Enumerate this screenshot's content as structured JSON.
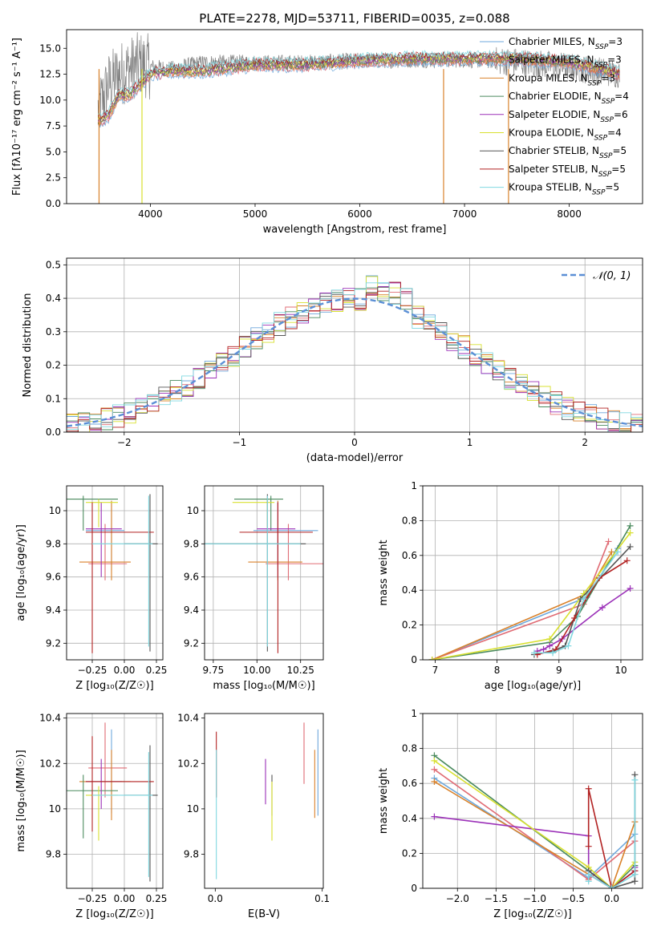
{
  "figure": {
    "title": "PLATE=2278, MJD=53711, FIBERID=0035, z=0.088"
  },
  "chart_data": [
    {
      "id": "spectrum",
      "type": "line",
      "xlabel": "wavelength [Angstrom, rest frame]",
      "ylabel": "Flux [fλ10⁻¹⁷ erg cm⁻² s⁻¹ A⁻¹]",
      "xlim": [
        3200,
        8700
      ],
      "ylim": [
        0,
        16.8
      ],
      "xticks": [
        4000,
        5000,
        6000,
        7000,
        8000
      ],
      "yticks": [
        0.0,
        2.5,
        5.0,
        7.5,
        10.0,
        12.5,
        15.0
      ],
      "grid": false,
      "legend_position": "right",
      "data_envelope": {
        "x": [
          3500,
          3600,
          3700,
          3800,
          3900,
          4000,
          4200,
          4500,
          5000,
          5500,
          6000,
          6500,
          7000,
          7500,
          8000,
          8500
        ],
        "observed_y": [
          9.0,
          11.5,
          12.5,
          13.0,
          13.5,
          13.2,
          13.0,
          13.6,
          13.6,
          13.6,
          13.8,
          13.9,
          13.9,
          13.7,
          13.2,
          12.5
        ],
        "model_y": [
          8.0,
          8.5,
          10.5,
          10.5,
          11.5,
          12.5,
          12.8,
          12.8,
          13.4,
          13.4,
          13.8,
          14.0,
          14.0,
          14.0,
          13.7,
          12.5
        ]
      },
      "series": [
        {
          "name": "Chabrier MILES, N_SSP=3",
          "label_main": "Chabrier MILES, N",
          "label_sub": "SSP",
          "label_tail": "=3",
          "color": "#6fa8dc"
        },
        {
          "name": "Salpeter MILES, N_SSP=3",
          "label_main": "Salpeter MILES, N",
          "label_sub": "SSP",
          "label_tail": "=3",
          "color": "#e06c75"
        },
        {
          "name": "Kroupa MILES, N_SSP=3",
          "label_main": "Kroupa MILES, N",
          "label_sub": "SSP",
          "label_tail": "=3",
          "color": "#d9822b"
        },
        {
          "name": "Chabrier ELODIE, N_SSP=4",
          "label_main": "Chabrier ELODIE, N",
          "label_sub": "SSP",
          "label_tail": "=4",
          "color": "#4a8a5e"
        },
        {
          "name": "Salpeter ELODIE, N_SSP=6",
          "label_main": "Salpeter ELODIE, N",
          "label_sub": "SSP",
          "label_tail": "=6",
          "color": "#9b30b8"
        },
        {
          "name": "Kroupa ELODIE, N_SSP=4",
          "label_main": "Kroupa ELODIE, N",
          "label_sub": "SSP",
          "label_tail": "=4",
          "color": "#d8e030"
        },
        {
          "name": "Chabrier STELIB, N_SSP=5",
          "label_main": "Chabrier STELIB, N",
          "label_sub": "SSP",
          "label_tail": "=5",
          "color": "#555555"
        },
        {
          "name": "Salpeter STELIB, N_SSP=5",
          "label_main": "Salpeter STELIB, N",
          "label_sub": "SSP",
          "label_tail": "=5",
          "color": "#b22222"
        },
        {
          "name": "Kroupa STELIB, N_SSP=5",
          "label_main": "Kroupa STELIB, N",
          "label_sub": "SSP",
          "label_tail": "=5",
          "color": "#7fd8e0"
        }
      ]
    },
    {
      "id": "residuals",
      "type": "line",
      "xlabel": "(data-model)/error",
      "ylabel": "Normed distribution",
      "xlim": [
        -2.5,
        2.5
      ],
      "ylim": [
        0,
        0.52
      ],
      "xticks": [
        -2,
        -1,
        0,
        1,
        2
      ],
      "yticks": [
        0.0,
        0.1,
        0.2,
        0.3,
        0.4,
        0.5
      ],
      "grid": true,
      "legend_position": "top-right",
      "legend_label": "𝒩(0, 1)",
      "reference_curve": {
        "name": "N(0,1)",
        "color": "#5b8fd6",
        "mu": 0,
        "sigma": 1
      },
      "histogram_bin_width": 0.1
    },
    {
      "id": "age-vs-Z",
      "type": "scatter",
      "xlabel": "Z [log₁₀(Z/Z☉)]",
      "ylabel": "age  [log₁₀(age/yr)]",
      "xlim": [
        -0.45,
        0.3
      ],
      "ylim": [
        9.1,
        10.15
      ],
      "xticks": [
        -0.25,
        0.0,
        0.25
      ],
      "xticklabels": [
        "−0.25",
        "0.00",
        "0.25"
      ],
      "yticks": [
        9.2,
        9.4,
        9.6,
        9.8,
        10.0
      ],
      "grid": true
    },
    {
      "id": "age-vs-mass",
      "type": "scatter",
      "xlabel": "mass [log₁₀(M/M☉)]",
      "xlim": [
        9.7,
        10.38
      ],
      "ylim": [
        9.1,
        10.15
      ],
      "xticks": [
        9.75,
        10.0,
        10.25
      ],
      "xticklabels": [
        "9.75",
        "10.00",
        "10.25"
      ],
      "yticks": [
        9.2,
        9.4,
        9.6,
        9.8,
        10.0
      ],
      "grid": true
    },
    {
      "id": "mass-weight-vs-age",
      "type": "line",
      "xlabel": "age  [log₁₀(age/yr)]",
      "ylabel": "mass weight",
      "xlim": [
        6.8,
        10.35
      ],
      "ylim": [
        0,
        1.0
      ],
      "xticks": [
        7,
        8,
        9,
        10
      ],
      "yticks": [
        0.0,
        0.2,
        0.4,
        0.6,
        0.8,
        1.0
      ],
      "grid": true,
      "series": [
        {
          "name": "Chabrier MILES",
          "x": [
            6.95,
            9.45,
            9.95
          ],
          "y": [
            0.0,
            0.36,
            0.64
          ]
        },
        {
          "name": "Salpeter MILES",
          "x": [
            6.95,
            9.4,
            9.8
          ],
          "y": [
            0.0,
            0.32,
            0.68
          ]
        },
        {
          "name": "Kroupa MILES",
          "x": [
            6.95,
            9.45,
            9.85
          ],
          "y": [
            0.0,
            0.38,
            0.62
          ]
        },
        {
          "name": "Chabrier ELODIE",
          "x": [
            6.95,
            8.85,
            9.3,
            10.15
          ],
          "y": [
            0.0,
            0.1,
            0.25,
            0.77
          ]
        },
        {
          "name": "Salpeter ELODIE",
          "x": [
            8.65,
            8.75,
            8.85,
            9.05,
            9.7,
            10.15
          ],
          "y": [
            0.05,
            0.06,
            0.08,
            0.12,
            0.3,
            0.41
          ]
        },
        {
          "name": "Kroupa ELODIE",
          "x": [
            6.95,
            8.85,
            9.4,
            10.15
          ],
          "y": [
            0.0,
            0.12,
            0.38,
            0.73
          ]
        },
        {
          "name": "Chabrier STELIB",
          "x": [
            8.6,
            8.9,
            9.1,
            9.35,
            10.15
          ],
          "y": [
            0.03,
            0.05,
            0.08,
            0.35,
            0.65
          ]
        },
        {
          "name": "Salpeter STELIB",
          "x": [
            8.65,
            8.95,
            9.25,
            9.65,
            10.1
          ],
          "y": [
            0.03,
            0.06,
            0.24,
            0.47,
            0.57
          ]
        },
        {
          "name": "Kroupa STELIB",
          "x": [
            8.6,
            8.9,
            9.15,
            9.4,
            9.95
          ],
          "y": [
            0.04,
            0.04,
            0.08,
            0.35,
            0.62
          ]
        }
      ]
    },
    {
      "id": "mass-vs-Z",
      "type": "scatter",
      "xlabel": "Z [log₁₀(Z/Z☉)]",
      "ylabel": "mass [log₁₀(M/M☉)]",
      "xlim": [
        -0.45,
        0.3
      ],
      "ylim": [
        9.65,
        10.42
      ],
      "xticks": [
        -0.25,
        0.0,
        0.25
      ],
      "xticklabels": [
        "−0.25",
        "0.00",
        "0.25"
      ],
      "yticks": [
        9.8,
        10.0,
        10.2,
        10.4
      ],
      "grid": true
    },
    {
      "id": "mass-vs-EBV",
      "type": "scatter",
      "xlabel": "E(B-V)",
      "xlim": [
        -0.01,
        0.101
      ],
      "ylim": [
        9.65,
        10.42
      ],
      "xticks": [
        0.0,
        0.1
      ],
      "xticklabels": [
        "0.0",
        "0.1"
      ],
      "yticks": [
        9.8,
        10.0,
        10.2,
        10.4
      ],
      "grid": false,
      "points": [
        {
          "name": "Salpeter STELIB",
          "x": 0.001,
          "y": 10.2,
          "lo": 10.05,
          "hi": 10.34
        },
        {
          "name": "Kroupa STELIB",
          "x": 0.001,
          "y": 9.96,
          "lo": 9.69,
          "hi": 10.26
        },
        {
          "name": "Salpeter ELODIE",
          "x": 0.047,
          "y": 10.12,
          "lo": 10.02,
          "hi": 10.22
        },
        {
          "name": "Chabrier STELIB",
          "x": 0.053,
          "y": 10.06,
          "lo": 9.97,
          "hi": 10.15
        },
        {
          "name": "Kroupa ELODIE",
          "x": 0.053,
          "y": 9.98,
          "lo": 9.86,
          "hi": 10.12
        },
        {
          "name": "Salpeter MILES",
          "x": 0.083,
          "y": 10.24,
          "lo": 10.11,
          "hi": 10.38
        },
        {
          "name": "Kroupa MILES",
          "x": 0.093,
          "y": 10.12,
          "lo": 9.96,
          "hi": 10.26
        },
        {
          "name": "Chabrier MILES",
          "x": 0.096,
          "y": 10.16,
          "lo": 9.97,
          "hi": 10.35
        }
      ]
    },
    {
      "id": "mass-weight-vs-Z",
      "type": "line",
      "xlabel": "Z [log₁₀(Z/Z☉)]",
      "ylabel": "mass weight",
      "xlim": [
        -2.45,
        0.4
      ],
      "ylim": [
        0,
        1.0
      ],
      "xticks": [
        -2.0,
        -1.5,
        -1.0,
        -0.5,
        0.0
      ],
      "xticklabels": [
        "−2.0",
        "−1.5",
        "−1.0",
        "−0.5",
        "0.0"
      ],
      "yticks": [
        0.0,
        0.2,
        0.4,
        0.6,
        0.8,
        1.0
      ],
      "grid": true,
      "series": [
        {
          "name": "Chabrier MILES",
          "x": [
            -2.3,
            -0.3,
            0.3
          ],
          "y": [
            0.63,
            0.06,
            0.31
          ]
        },
        {
          "name": "Salpeter MILES",
          "x": [
            -2.3,
            -0.3,
            0.3
          ],
          "y": [
            0.68,
            0.05,
            0.27
          ]
        },
        {
          "name": "Kroupa MILES",
          "x": [
            -2.3,
            -0.3,
            0.0,
            0.3
          ],
          "y": [
            0.61,
            0.08,
            0.0,
            0.38
          ]
        },
        {
          "name": "Chabrier ELODIE",
          "x": [
            -2.3,
            -0.3,
            0.0,
            0.3
          ],
          "y": [
            0.76,
            0.1,
            0.0,
            0.13
          ]
        },
        {
          "name": "Salpeter ELODIE",
          "x": [
            -2.3,
            -0.3,
            -0.3,
            0.0,
            0.3,
            0.3
          ],
          "y": [
            0.41,
            0.3,
            0.08,
            0.0,
            0.1,
            0.12
          ]
        },
        {
          "name": "Kroupa ELODIE",
          "x": [
            -2.3,
            -0.3,
            0.0,
            0.3
          ],
          "y": [
            0.73,
            0.12,
            0.0,
            0.15
          ]
        },
        {
          "name": "Chabrier STELIB",
          "x": [
            -0.3,
            0.0,
            0.3,
            0.3
          ],
          "y": [
            0.1,
            0.0,
            0.04,
            0.65
          ]
        },
        {
          "name": "Salpeter STELIB",
          "x": [
            -0.3,
            -0.3,
            0.0,
            0.3,
            0.3
          ],
          "y": [
            0.24,
            0.57,
            0.0,
            0.1,
            0.08
          ]
        },
        {
          "name": "Kroupa STELIB",
          "x": [
            -0.3,
            -0.3,
            0.0,
            0.3,
            0.3
          ],
          "y": [
            0.04,
            0.08,
            0.0,
            0.08,
            0.62
          ]
        }
      ]
    }
  ],
  "errorbars_age_Z_mass": [
    {
      "name": "Chabrier MILES",
      "Z": -0.1,
      "Zlo": -0.3,
      "Zhi": 0.0,
      "age": 9.88,
      "agelo": 9.64,
      "agehi": 10.06,
      "mass": 10.12,
      "masslo": 9.98,
      "masshi": 10.35
    },
    {
      "name": "Salpeter MILES",
      "Z": -0.15,
      "Zlo": -0.28,
      "Zhi": 0.02,
      "age": 9.68,
      "agelo": 9.58,
      "agehi": 9.92,
      "mass": 10.18,
      "masslo": 10.05,
      "masshi": 10.38
    },
    {
      "name": "Kroupa MILES",
      "Z": -0.1,
      "Zlo": -0.35,
      "Zhi": 0.05,
      "age": 9.69,
      "agelo": 9.58,
      "agehi": 10.06,
      "mass": 10.12,
      "masslo": 9.95,
      "masshi": 10.26
    },
    {
      "name": "Chabrier ELODIE",
      "Z": -0.32,
      "Zlo": -0.45,
      "Zhi": -0.05,
      "age": 10.07,
      "agelo": 9.88,
      "agehi": 10.09,
      "mass": 10.08,
      "masslo": 9.87,
      "masshi": 10.15
    },
    {
      "name": "Salpeter ELODIE",
      "Z": -0.18,
      "Zlo": -0.3,
      "Zhi": -0.02,
      "age": 9.89,
      "agelo": 9.6,
      "agehi": 10.05,
      "mass": 10.12,
      "masslo": 10.0,
      "masshi": 10.22
    },
    {
      "name": "Kroupa ELODIE",
      "Z": -0.2,
      "Zlo": -0.3,
      "Zhi": -0.05,
      "age": 10.05,
      "agelo": 9.9,
      "agehi": 10.07,
      "mass": 10.06,
      "masslo": 9.86,
      "masshi": 10.1
    },
    {
      "name": "Chabrier STELIB",
      "Z": 0.2,
      "Zlo": 0.0,
      "Zhi": 0.26,
      "age": 9.8,
      "agelo": 9.15,
      "agehi": 10.1,
      "mass": 10.06,
      "masslo": 9.68,
      "masshi": 10.28
    },
    {
      "name": "Salpeter STELIB",
      "Z": -0.25,
      "Zlo": -0.3,
      "Zhi": 0.23,
      "age": 9.87,
      "agelo": 9.14,
      "agehi": 10.05,
      "mass": 10.12,
      "masslo": 9.9,
      "masshi": 10.32
    },
    {
      "name": "Kroupa STELIB",
      "Z": 0.19,
      "Zlo": -0.25,
      "Zhi": 0.22,
      "age": 9.8,
      "agelo": 9.18,
      "agehi": 10.09,
      "mass": 10.06,
      "masslo": 9.7,
      "masshi": 10.25
    }
  ]
}
